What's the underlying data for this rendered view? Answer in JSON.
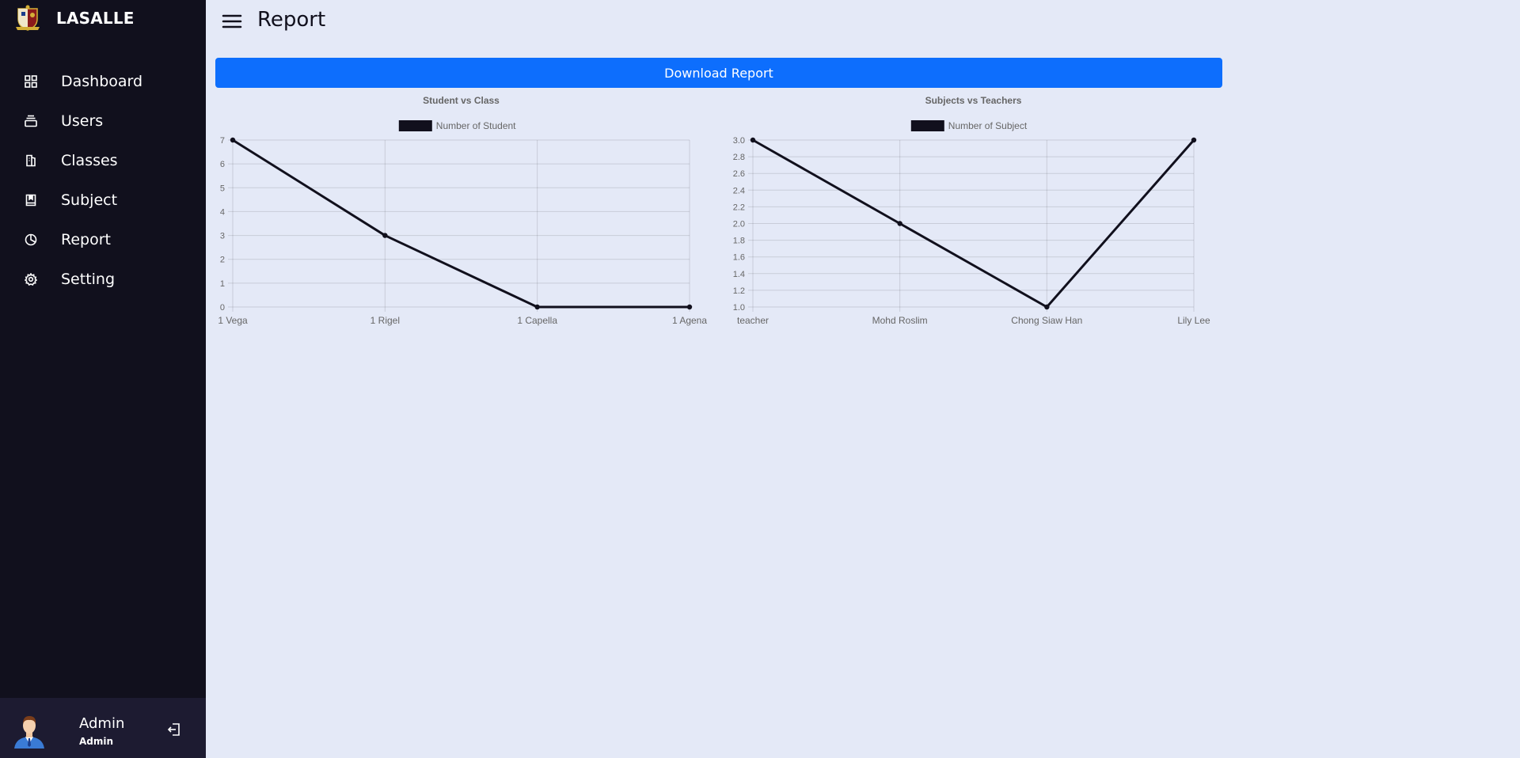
{
  "sidebar": {
    "brand": "LASALLE",
    "items": [
      {
        "label": "Dashboard",
        "icon": "grid-icon"
      },
      {
        "label": "Users",
        "icon": "stack-icon"
      },
      {
        "label": "Classes",
        "icon": "building-icon"
      },
      {
        "label": "Subject",
        "icon": "book-icon"
      },
      {
        "label": "Report",
        "icon": "pie-chart-icon"
      },
      {
        "label": "Setting",
        "icon": "gear-icon"
      }
    ],
    "profile": {
      "name": "Admin",
      "role": "Admin"
    }
  },
  "header": {
    "title": "Report"
  },
  "download_label": "Download Report",
  "colors": {
    "sidebar": "#11101d",
    "profile_bg": "#1d1b31",
    "page_bg": "#e4e9f7",
    "accent": "#0d6efd",
    "line": "#11101d"
  },
  "chart_data": [
    {
      "type": "line",
      "title": "Student vs Class",
      "categories": [
        "1 Vega",
        "1 Rigel",
        "1 Capella",
        "1 Agena"
      ],
      "series": [
        {
          "name": "Number of Student",
          "values": [
            7,
            3,
            0,
            0
          ]
        }
      ],
      "ylim": [
        0,
        7
      ],
      "yticks": [
        "7",
        "6",
        "5",
        "4",
        "3",
        "2",
        "1",
        "0"
      ],
      "grid": true,
      "legend": "top"
    },
    {
      "type": "line",
      "title": "Subjects vs Teachers",
      "categories": [
        "teacher",
        "Mohd Roslim",
        "Chong Siaw Han",
        "Lily Lee"
      ],
      "series": [
        {
          "name": "Number of Subject",
          "values": [
            3,
            2,
            1,
            3
          ]
        }
      ],
      "ylim": [
        1,
        3
      ],
      "yticks": [
        "3.0",
        "2.8",
        "2.6",
        "2.4",
        "2.2",
        "2.0",
        "1.8",
        "1.6",
        "1.4",
        "1.2",
        "1.0"
      ],
      "grid": true,
      "legend": "top"
    }
  ]
}
